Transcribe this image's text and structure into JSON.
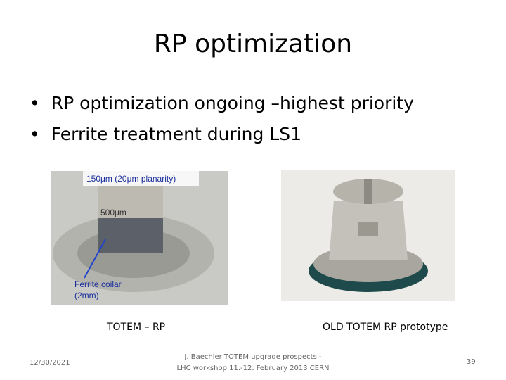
{
  "title": "RP optimization",
  "bullets": [
    "RP optimization ongoing –highest priority",
    "Ferrite treatment during LS1"
  ],
  "figures": [
    {
      "caption": "TOTEM – RP",
      "annotations": [
        "150μm (20μm planarity)",
        "500μm",
        "Ferrite coilar",
        "(2mm)"
      ]
    },
    {
      "caption": "OLD TOTEM RP prototype"
    }
  ],
  "footer": {
    "date": "12/30/2021",
    "center": [
      "J. Baechler TOTEM upgrade prospects -",
      "LHC workshop 11.-12. February 2013 CERN"
    ],
    "page": "39"
  }
}
